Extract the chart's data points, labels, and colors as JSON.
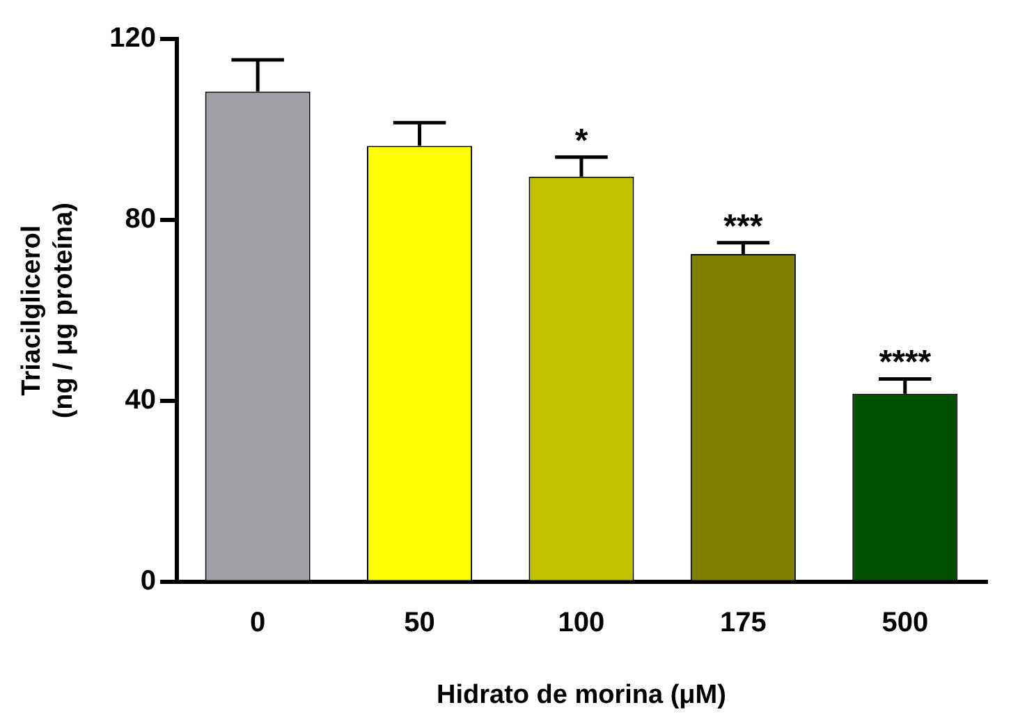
{
  "chart_data": {
    "type": "bar",
    "xlabel": "Hidrato de morina (μM)",
    "ylabel": "Triacilglicerol\n(ng / μg proteína)",
    "categories": [
      "0",
      "50",
      "100",
      "175",
      "500"
    ],
    "values": [
      108.4,
      96.4,
      89.6,
      72.5,
      41.6
    ],
    "colors": [
      "#a09fa5",
      "#ffff00",
      "#c3c000",
      "#808000",
      "#005000"
    ],
    "errors": [
      [
        108.4,
        115.4
      ],
      [
        96.4,
        101.5
      ],
      [
        89.6,
        93.9
      ],
      [
        72.5,
        75
      ],
      [
        41.6,
        44.9
      ]
    ],
    "ylim": [
      0,
      120
    ],
    "yticks": [
      0,
      40,
      80,
      120
    ],
    "grid": false,
    "legend": false,
    "annotations": [
      {
        "text": "*",
        "x": "100",
        "y": 93.9
      },
      {
        "text": "***",
        "x": "175",
        "y": 75
      },
      {
        "text": "****",
        "x": "500",
        "y": 44.9
      }
    ]
  }
}
